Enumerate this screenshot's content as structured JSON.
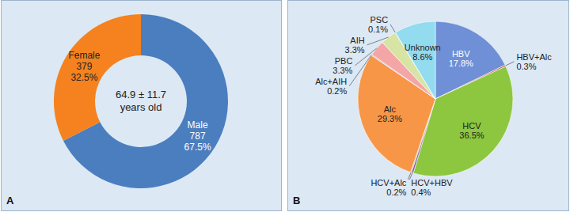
{
  "chart_data": [
    {
      "type": "donut",
      "title": "A",
      "center_label": [
        "64.9 ± 11.7",
        "years old"
      ],
      "categories": [
        "Male",
        "Female"
      ],
      "counts": [
        787,
        379
      ],
      "values": [
        67.5,
        32.5
      ],
      "value_labels": [
        "67.5%",
        "32.5%"
      ],
      "colors": [
        "#4a7ebf",
        "#f5821f"
      ],
      "data_labels": true
    },
    {
      "type": "pie",
      "title": "B",
      "categories": [
        "HBV",
        "HBV+Alc",
        "HCV",
        "HCV+HBV",
        "HCV+Alc",
        "Alc",
        "Alc+AIH",
        "PBC",
        "AIH",
        "PSC",
        "Unknown"
      ],
      "values": [
        17.8,
        0.3,
        36.5,
        0.4,
        0.2,
        29.3,
        0.2,
        3.3,
        3.3,
        0.1,
        8.6
      ],
      "value_labels": [
        "17.8%",
        "0.3%",
        "36.5%",
        "0.4%",
        "0.2%",
        "29.3%",
        "0.2%",
        "3.3%",
        "3.3%",
        "0.1%",
        "8.6%"
      ],
      "colors": [
        "#6f8fd6",
        "#c0504d",
        "#8dc63f",
        "#7a5fa0",
        "#d08c4a",
        "#f79646",
        "#b8a0c8",
        "#f4a6a6",
        "#d7e4a3",
        "#b7a5d8",
        "#93dbef"
      ],
      "data_labels": true
    }
  ]
}
